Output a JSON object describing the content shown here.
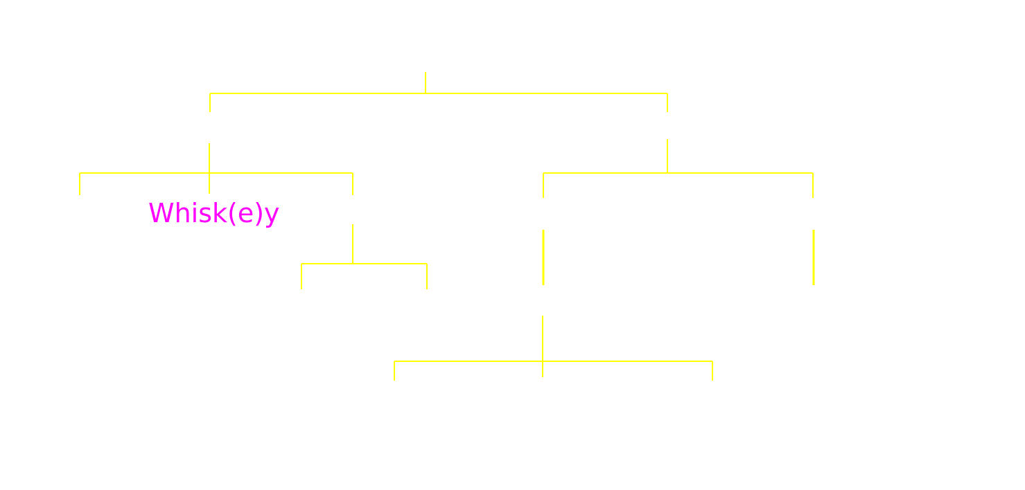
{
  "diagram": {
    "type": "tree",
    "line_color": "#ffff00",
    "label_color": "#ff00ff",
    "labels": {
      "whiskey_node": "Whisk(e)y"
    }
  }
}
